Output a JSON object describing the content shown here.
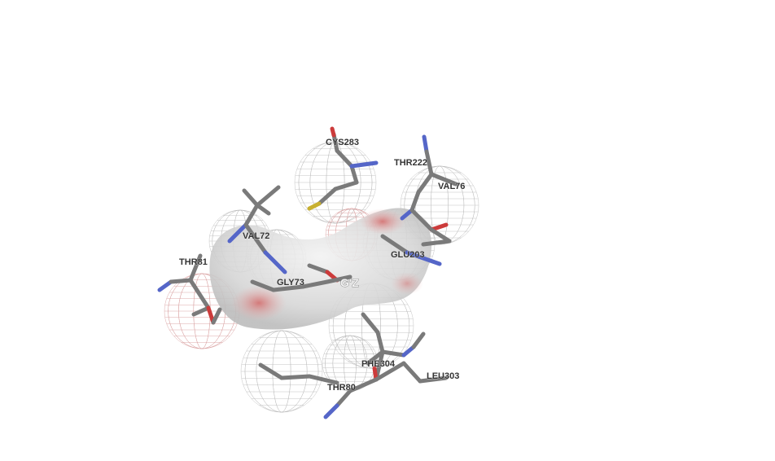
{
  "scene": {
    "type": "molecular-3d-view",
    "background": "#ffffff",
    "center_label": "G'Z",
    "residues": [
      {
        "name": "CYS283"
      },
      {
        "name": "THR222"
      },
      {
        "name": "VAL76"
      },
      {
        "name": "VAL72"
      },
      {
        "name": "THR81"
      },
      {
        "name": "GLY73"
      },
      {
        "name": "GLU203"
      },
      {
        "name": "PHE304"
      },
      {
        "name": "LEU303"
      },
      {
        "name": "THR80"
      }
    ],
    "colors": {
      "carbon": "#7a7a7a",
      "nitrogen": "#5566c8",
      "oxygen": "#cc3b3b",
      "sulfur": "#c8b030",
      "surface": "#dcdcdc",
      "mesh": "#bdbdbd"
    }
  }
}
